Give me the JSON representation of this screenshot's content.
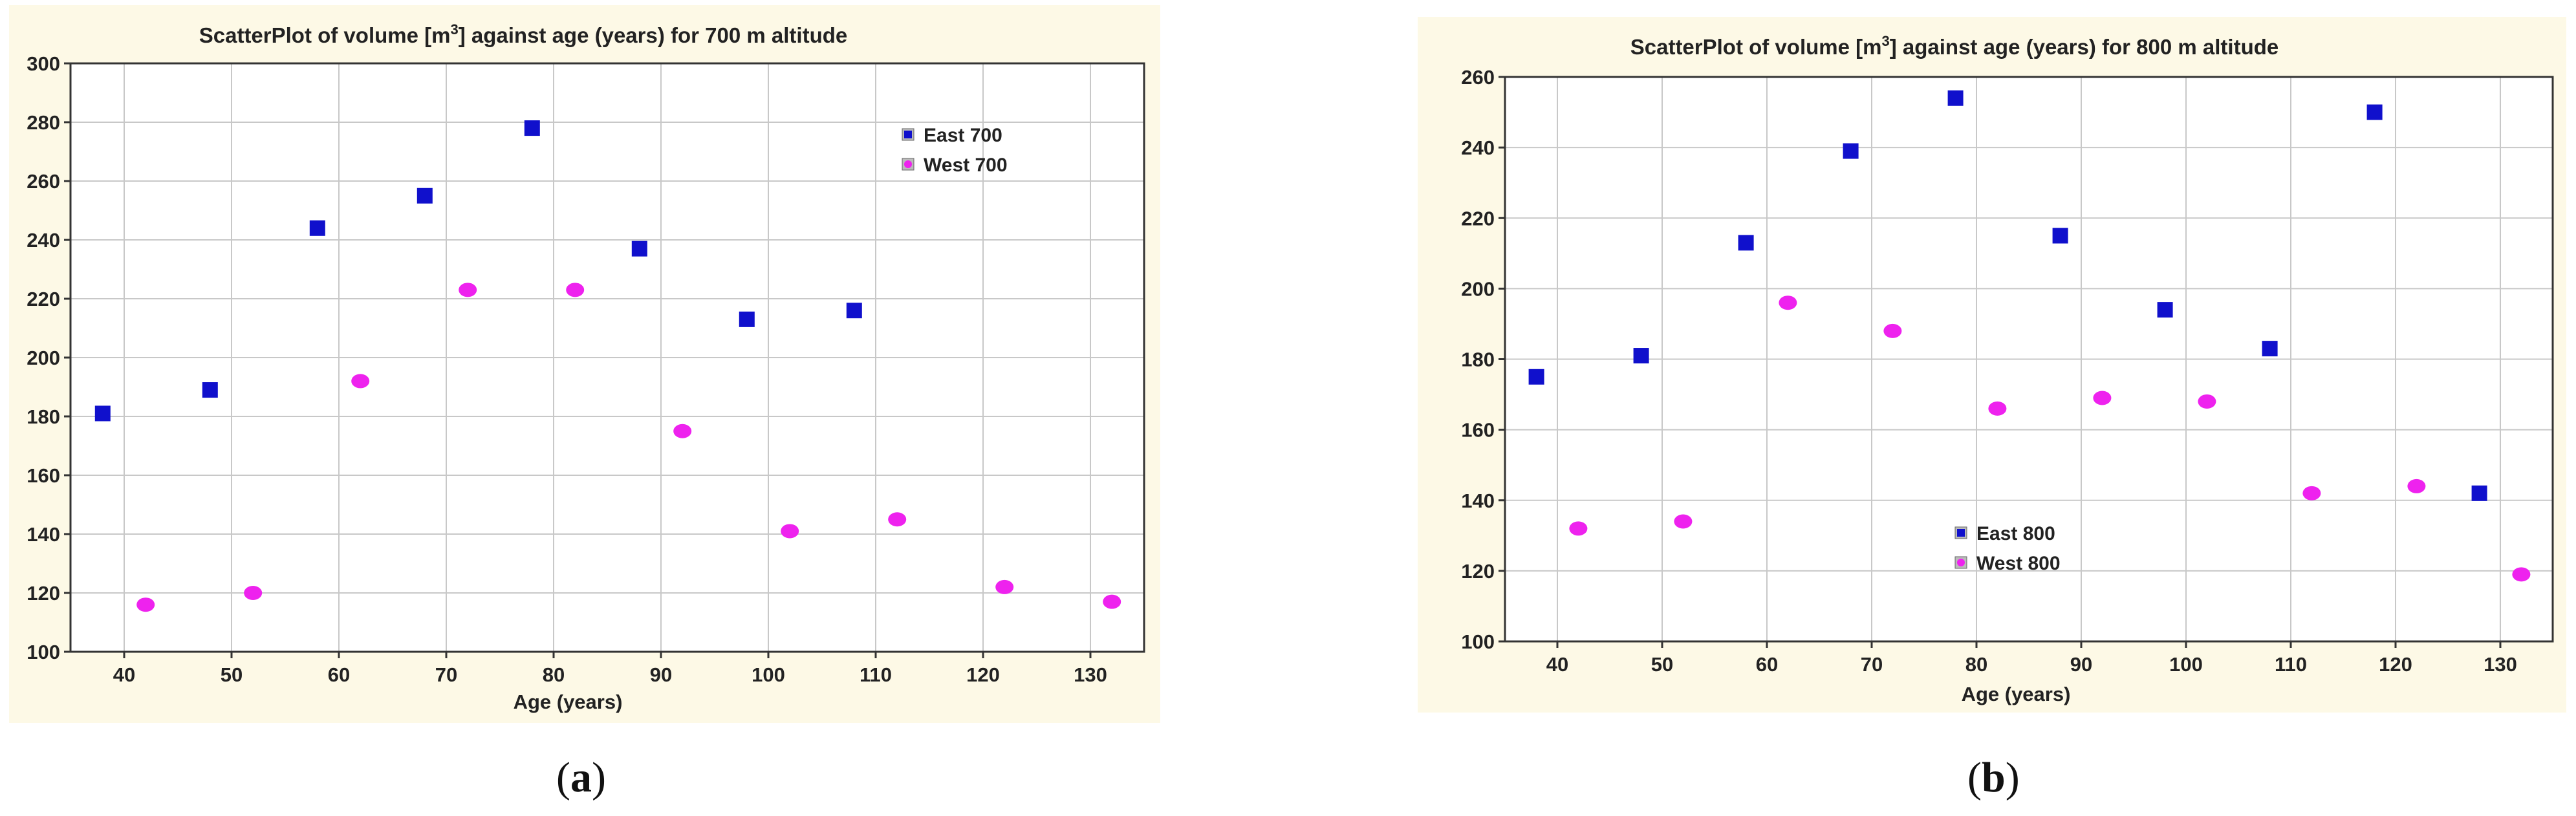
{
  "colors": {
    "panel_background": "#fdf9e6",
    "plot_background": "#ffffff",
    "east": "#1010cc",
    "west": "#ee22ee",
    "grid": "#c8c8c8"
  },
  "chart_data": [
    {
      "type": "scatter",
      "title_pre": "ScatterPlot of volume [m",
      "title_sup": "3",
      "title_post": "] against age (years) for 700 m altitude",
      "xlabel": "Age  (years)",
      "ylabel": "",
      "xlim": [
        35,
        135
      ],
      "ylim": [
        100,
        300
      ],
      "xticks": [
        40,
        50,
        60,
        70,
        80,
        90,
        100,
        110,
        120,
        130
      ],
      "yticks": [
        100,
        120,
        140,
        160,
        180,
        200,
        220,
        240,
        260,
        280,
        300
      ],
      "grid": true,
      "legend_position": "top-right",
      "series": [
        {
          "name": "East  700",
          "marker": "square",
          "color": "#1010cc",
          "x": [
            38,
            48,
            58,
            68,
            78,
            88,
            98,
            108
          ],
          "y": [
            181,
            189,
            244,
            255,
            278,
            237,
            213,
            216
          ]
        },
        {
          "name": "West 700",
          "marker": "circle",
          "color": "#ee22ee",
          "x": [
            42,
            52,
            62,
            72,
            82,
            92,
            102,
            112,
            122,
            132
          ],
          "y": [
            116,
            120,
            192,
            223,
            223,
            175,
            141,
            145,
            122,
            117
          ]
        }
      ],
      "caption": "a"
    },
    {
      "type": "scatter",
      "title_pre": "ScatterPlot of volume [m",
      "title_sup": "3",
      "title_post": "] against age (years) for 800 m altitude",
      "xlabel": "Age  (years)",
      "ylabel": "",
      "xlim": [
        35,
        135
      ],
      "ylim": [
        100,
        260
      ],
      "xticks": [
        40,
        50,
        60,
        70,
        80,
        90,
        100,
        110,
        120,
        130
      ],
      "yticks": [
        100,
        120,
        140,
        160,
        180,
        200,
        220,
        240,
        260
      ],
      "grid": true,
      "legend_position": "bottom-center",
      "series": [
        {
          "name": "East 800",
          "marker": "square",
          "color": "#1010cc",
          "x": [
            38,
            48,
            58,
            68,
            78,
            88,
            98,
            108,
            118,
            128
          ],
          "y": [
            175,
            181,
            213,
            239,
            254,
            215,
            194,
            183,
            250,
            142
          ]
        },
        {
          "name": "West 800",
          "marker": "circle",
          "color": "#ee22ee",
          "x": [
            42,
            52,
            62,
            72,
            82,
            92,
            102,
            112,
            122,
            132
          ],
          "y": [
            132,
            134,
            196,
            188,
            166,
            169,
            168,
            142,
            144,
            119
          ]
        }
      ],
      "caption": "b"
    }
  ]
}
